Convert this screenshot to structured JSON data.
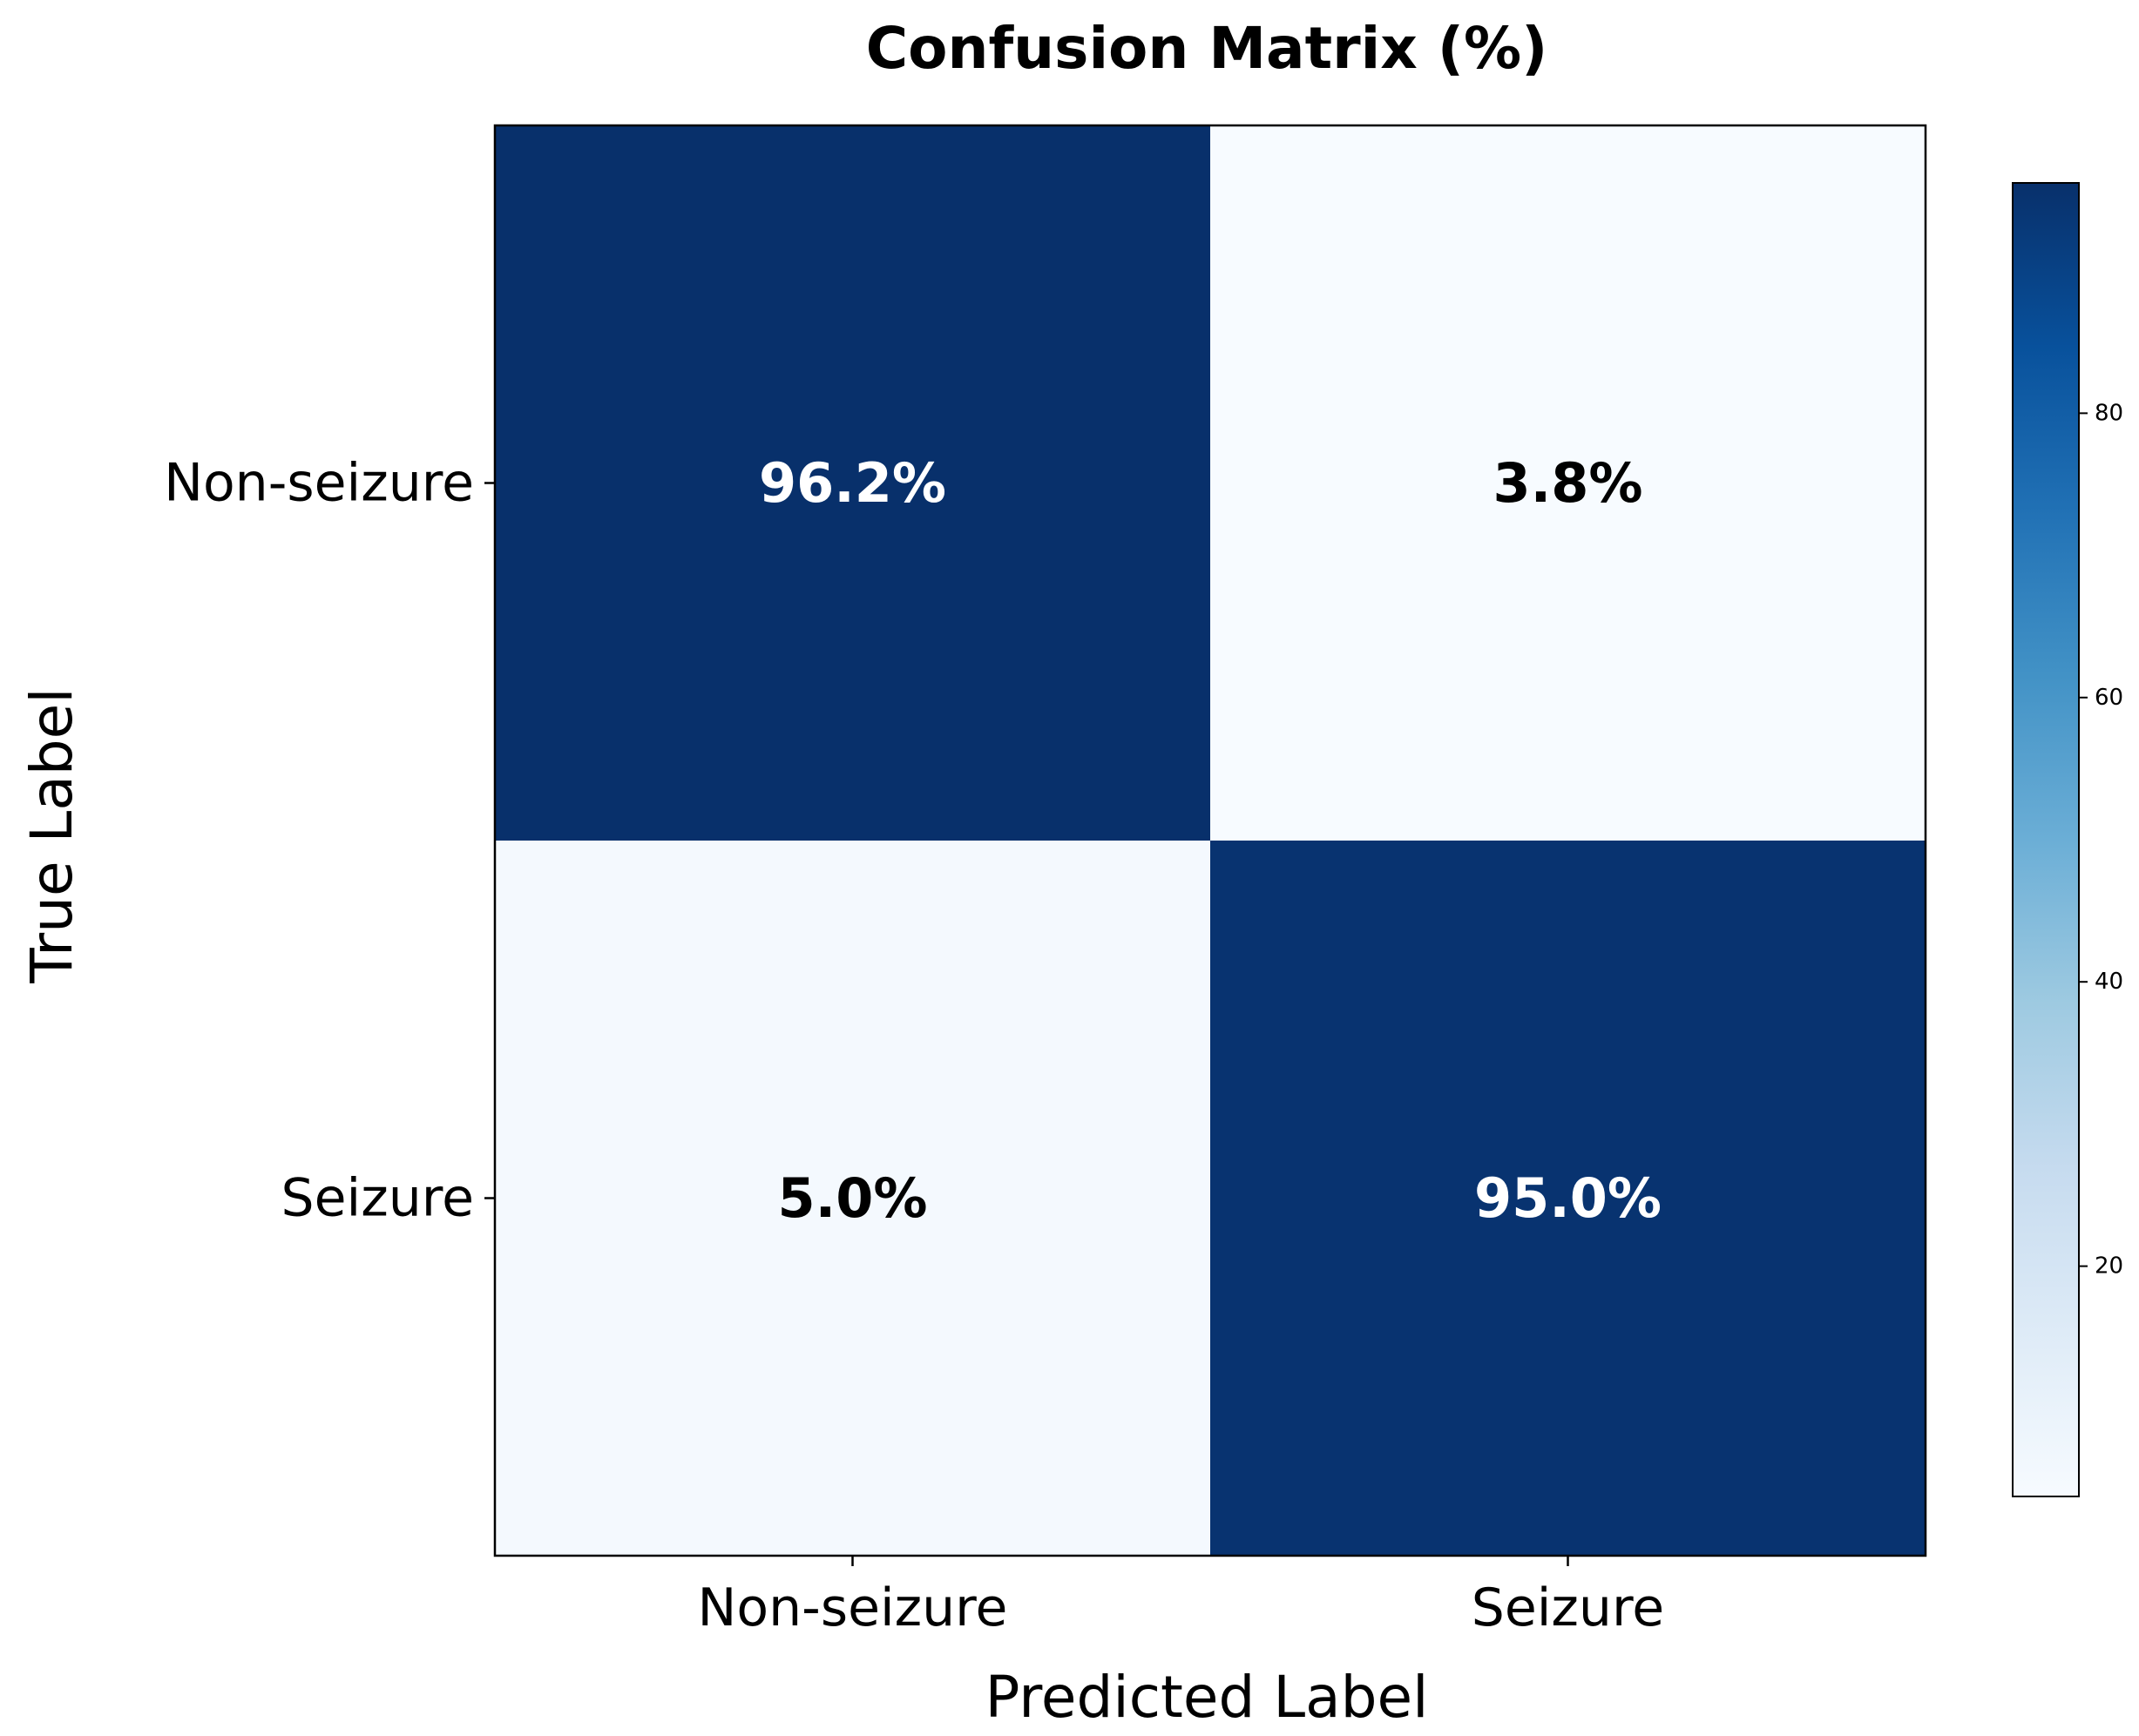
{
  "chart_data": {
    "type": "heatmap",
    "title": "Confusion Matrix (%)",
    "xlabel": "Predicted Label",
    "ylabel": "True Label",
    "x_categories": [
      "Non-seizure",
      "Seizure"
    ],
    "y_categories": [
      "Non-seizure",
      "Seizure"
    ],
    "values": [
      [
        96.2,
        3.8
      ],
      [
        5.0,
        95.0
      ]
    ],
    "cell_labels": [
      [
        "96.2%",
        "3.8%"
      ],
      [
        "5.0%",
        "95.0%"
      ]
    ],
    "colormap": "Blues",
    "colorbar": {
      "range": [
        3.8,
        96.2
      ],
      "ticks": [
        20,
        40,
        60,
        80
      ],
      "tick_labels": [
        "20",
        "40",
        "60",
        "80"
      ]
    },
    "grid": false
  },
  "colors": {
    "cmap_low": "#f7fbff",
    "cmap_high": "#08306b",
    "text_on_dark": "#ffffff",
    "text_on_light": "#000000"
  }
}
